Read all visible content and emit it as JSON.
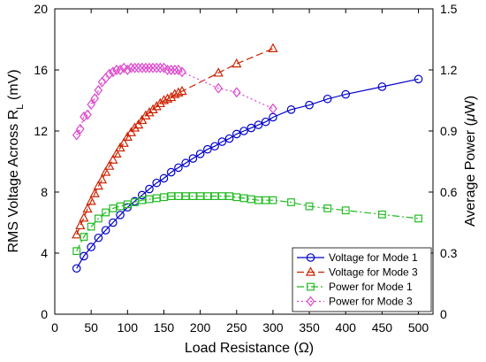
{
  "chart_data": {
    "type": "line",
    "xlabel": "Load Resistance (Ω)",
    "ylabel_left": {
      "base": "RMS Voltage Across R",
      "sub": "L",
      "unit": " (mV)"
    },
    "ylabel_right": {
      "base": "Average Power (",
      "greek": "μ",
      "unit": "W)"
    },
    "xlim": [
      0,
      520
    ],
    "ylim_left": [
      0,
      20
    ],
    "ylim_right": [
      0,
      1.5
    ],
    "xticks": [
      0,
      50,
      100,
      150,
      200,
      250,
      300,
      350,
      400,
      450,
      500
    ],
    "yticks_left": [
      0,
      4,
      8,
      12,
      16,
      20
    ],
    "yticks_right": [
      0,
      0.3,
      0.6,
      0.9,
      1.2,
      1.5
    ],
    "yticks_right_labels": [
      "0",
      "0.3",
      "0.6",
      "0.9",
      "1.2",
      "1.5"
    ],
    "grid": false,
    "legend_position": "bottom-right",
    "series": [
      {
        "name": "Voltage for Mode 1",
        "axis": "left",
        "color": "#0000cc",
        "marker": "circle",
        "dash": "",
        "x": [
          30,
          40,
          50,
          60,
          70,
          80,
          90,
          100,
          110,
          120,
          130,
          140,
          150,
          160,
          170,
          180,
          190,
          200,
          210,
          220,
          230,
          240,
          250,
          260,
          270,
          280,
          290,
          300,
          325,
          350,
          375,
          400,
          450,
          500
        ],
        "y": [
          3.0,
          3.8,
          4.4,
          5.0,
          5.5,
          6.0,
          6.5,
          7.0,
          7.4,
          7.8,
          8.2,
          8.6,
          8.9,
          9.3,
          9.6,
          9.9,
          10.2,
          10.5,
          10.8,
          11.0,
          11.3,
          11.5,
          11.8,
          12.0,
          12.2,
          12.4,
          12.6,
          12.9,
          13.4,
          13.7,
          14.1,
          14.4,
          14.9,
          15.4
        ]
      },
      {
        "name": "Voltage for Mode 3",
        "axis": "left",
        "color": "#cc2200",
        "marker": "triangle",
        "dash": "8,4",
        "x": [
          30,
          35,
          40,
          45,
          50,
          55,
          60,
          65,
          70,
          75,
          80,
          85,
          90,
          95,
          100,
          105,
          110,
          115,
          120,
          125,
          130,
          135,
          140,
          145,
          150,
          155,
          160,
          165,
          170,
          175,
          225,
          250,
          300
        ],
        "y": [
          5.2,
          5.8,
          6.3,
          6.9,
          7.4,
          7.9,
          8.4,
          8.8,
          9.3,
          9.7,
          10.1,
          10.5,
          10.9,
          11.2,
          11.6,
          11.9,
          12.2,
          12.4,
          12.7,
          13.0,
          13.2,
          13.4,
          13.6,
          13.8,
          14.0,
          14.1,
          14.2,
          14.4,
          14.5,
          14.6,
          15.8,
          16.4,
          17.4
        ]
      },
      {
        "name": "Power for Mode 1",
        "axis": "right",
        "color": "#22bb22",
        "marker": "square",
        "dash": "8,3,2,3",
        "x": [
          30,
          40,
          50,
          60,
          70,
          80,
          90,
          100,
          110,
          120,
          130,
          140,
          150,
          160,
          170,
          180,
          190,
          200,
          210,
          220,
          230,
          240,
          250,
          260,
          270,
          280,
          290,
          300,
          325,
          350,
          375,
          400,
          450,
          500
        ],
        "y": [
          0.31,
          0.38,
          0.43,
          0.47,
          0.5,
          0.52,
          0.53,
          0.54,
          0.55,
          0.56,
          0.565,
          0.57,
          0.575,
          0.58,
          0.58,
          0.58,
          0.58,
          0.58,
          0.58,
          0.58,
          0.58,
          0.58,
          0.575,
          0.57,
          0.565,
          0.56,
          0.56,
          0.56,
          0.55,
          0.53,
          0.52,
          0.51,
          0.49,
          0.47
        ]
      },
      {
        "name": "Power for Mode 3",
        "axis": "right",
        "color": "#dd44cc",
        "marker": "diamond",
        "dash": "2,3",
        "x": [
          30,
          35,
          40,
          45,
          50,
          55,
          60,
          65,
          70,
          75,
          80,
          85,
          90,
          95,
          100,
          105,
          110,
          115,
          120,
          125,
          130,
          135,
          140,
          145,
          150,
          155,
          160,
          165,
          170,
          175,
          225,
          250,
          300
        ],
        "y": [
          0.88,
          0.91,
          0.97,
          0.98,
          1.03,
          1.06,
          1.1,
          1.14,
          1.16,
          1.18,
          1.19,
          1.2,
          1.2,
          1.21,
          1.2,
          1.21,
          1.21,
          1.21,
          1.21,
          1.21,
          1.21,
          1.21,
          1.21,
          1.21,
          1.21,
          1.2,
          1.2,
          1.2,
          1.2,
          1.19,
          1.11,
          1.09,
          1.01
        ]
      }
    ]
  }
}
